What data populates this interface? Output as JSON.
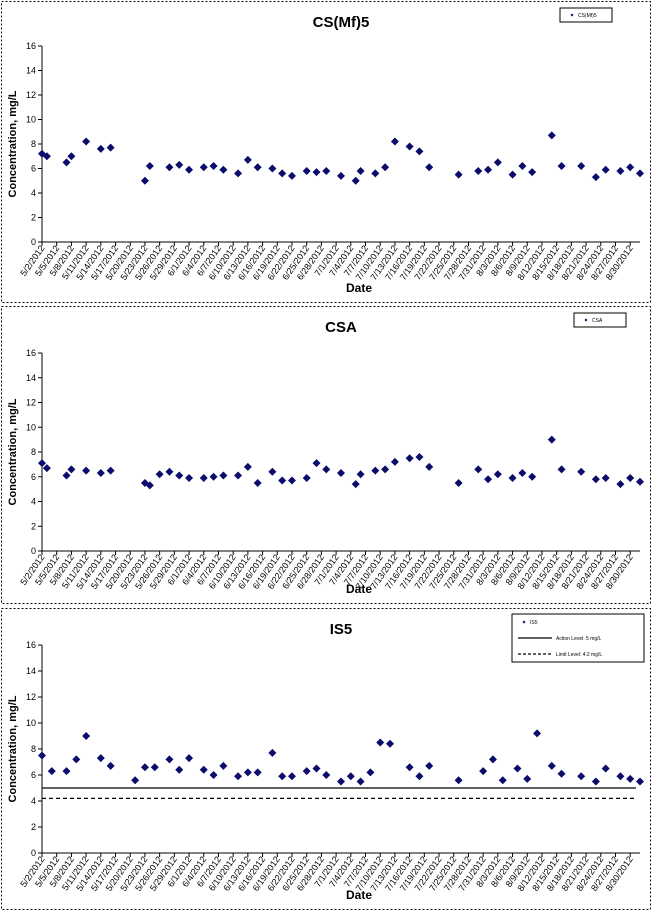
{
  "chart_data": [
    {
      "type": "scatter",
      "title": "CS(Mf)5",
      "xlabel": "Date",
      "ylabel": "Concentration, mg/L",
      "ylim": [
        0,
        16
      ],
      "yticks": [
        0,
        2,
        4,
        6,
        8,
        10,
        12,
        14,
        16
      ],
      "xlim": [
        "2012-05-02",
        "2012-09-01"
      ],
      "grid": false,
      "legend_position": "top-right",
      "x_tick_labels": [
        "5/2/2012",
        "5/5/2012",
        "5/8/2012",
        "5/11/2012",
        "5/14/2012",
        "5/17/2012",
        "5/20/2012",
        "5/23/2012",
        "5/26/2012",
        "5/29/2012",
        "6/1/2012",
        "6/4/2012",
        "6/7/2012",
        "6/10/2012",
        "6/13/2012",
        "6/16/2012",
        "6/19/2012",
        "6/22/2012",
        "6/25/2012",
        "6/28/2012",
        "7/1/2012",
        "7/4/2012",
        "7/7/2012",
        "7/10/2012",
        "7/13/2012",
        "7/16/2012",
        "7/19/2012",
        "7/22/2012",
        "7/25/2012",
        "7/28/2012",
        "7/31/2012",
        "8/3/2012",
        "8/6/2012",
        "8/9/2012",
        "8/12/2012",
        "8/15/2012",
        "8/18/2012",
        "8/21/2012",
        "8/24/2012",
        "8/27/2012",
        "8/30/2012"
      ],
      "series": [
        {
          "name": "CS(Mf)5",
          "marker": "diamond",
          "color": "#0b0b6b",
          "x": [
            "2012-05-02",
            "2012-05-03",
            "2012-05-07",
            "2012-05-08",
            "2012-05-11",
            "2012-05-14",
            "2012-05-16",
            "2012-05-23",
            "2012-05-24",
            "2012-05-28",
            "2012-05-30",
            "2012-06-01",
            "2012-06-04",
            "2012-06-06",
            "2012-06-08",
            "2012-06-11",
            "2012-06-13",
            "2012-06-15",
            "2012-06-18",
            "2012-06-20",
            "2012-06-22",
            "2012-06-25",
            "2012-06-27",
            "2012-06-29",
            "2012-07-02",
            "2012-07-05",
            "2012-07-06",
            "2012-07-09",
            "2012-07-11",
            "2012-07-13",
            "2012-07-16",
            "2012-07-18",
            "2012-07-20",
            "2012-07-26",
            "2012-07-30",
            "2012-08-01",
            "2012-08-03",
            "2012-08-06",
            "2012-08-08",
            "2012-08-10",
            "2012-08-14",
            "2012-08-16",
            "2012-08-20",
            "2012-08-23",
            "2012-08-25",
            "2012-08-28",
            "2012-08-30",
            "2012-09-01"
          ],
          "y": [
            7.2,
            7.0,
            6.5,
            7.0,
            8.2,
            7.6,
            7.7,
            5.0,
            6.2,
            6.1,
            6.3,
            5.9,
            6.1,
            6.2,
            5.9,
            5.6,
            6.7,
            6.1,
            6.0,
            5.6,
            5.4,
            5.8,
            5.7,
            5.8,
            5.4,
            5.0,
            5.8,
            5.6,
            6.1,
            8.2,
            7.8,
            7.4,
            6.1,
            5.5,
            5.8,
            5.9,
            6.5,
            5.5,
            6.2,
            5.7,
            8.7,
            6.2,
            6.2,
            5.3,
            5.9,
            5.8,
            6.1,
            5.6
          ]
        }
      ],
      "legend": [
        "CS(Mf)5"
      ]
    },
    {
      "type": "scatter",
      "title": "CSA",
      "xlabel": "Date",
      "ylabel": "Concentration, mg/L",
      "ylim": [
        0,
        16
      ],
      "yticks": [
        0,
        2,
        4,
        6,
        8,
        10,
        12,
        14,
        16
      ],
      "xlim": [
        "2012-05-02",
        "2012-09-01"
      ],
      "grid": false,
      "legend_position": "top-right",
      "x_tick_labels": [
        "5/2/2012",
        "5/5/2012",
        "5/8/2012",
        "5/11/2012",
        "5/14/2012",
        "5/17/2012",
        "5/20/2012",
        "5/23/2012",
        "5/26/2012",
        "5/29/2012",
        "6/1/2012",
        "6/4/2012",
        "6/7/2012",
        "6/10/2012",
        "6/13/2012",
        "6/16/2012",
        "6/19/2012",
        "6/22/2012",
        "6/25/2012",
        "6/28/2012",
        "7/1/2012",
        "7/4/2012",
        "7/7/2012",
        "7/10/2012",
        "7/13/2012",
        "7/16/2012",
        "7/19/2012",
        "7/22/2012",
        "7/25/2012",
        "7/28/2012",
        "7/31/2012",
        "8/3/2012",
        "8/6/2012",
        "8/9/2012",
        "8/12/2012",
        "8/15/2012",
        "8/18/2012",
        "8/21/2012",
        "8/24/2012",
        "8/27/2012",
        "8/30/2012"
      ],
      "series": [
        {
          "name": "CSA",
          "marker": "diamond",
          "color": "#0b0b6b",
          "x": [
            "2012-05-02",
            "2012-05-03",
            "2012-05-07",
            "2012-05-08",
            "2012-05-11",
            "2012-05-14",
            "2012-05-16",
            "2012-05-23",
            "2012-05-24",
            "2012-05-26",
            "2012-05-28",
            "2012-05-30",
            "2012-06-01",
            "2012-06-04",
            "2012-06-06",
            "2012-06-08",
            "2012-06-11",
            "2012-06-13",
            "2012-06-15",
            "2012-06-18",
            "2012-06-20",
            "2012-06-22",
            "2012-06-25",
            "2012-06-27",
            "2012-06-29",
            "2012-07-02",
            "2012-07-05",
            "2012-07-06",
            "2012-07-09",
            "2012-07-11",
            "2012-07-13",
            "2012-07-16",
            "2012-07-18",
            "2012-07-20",
            "2012-07-26",
            "2012-07-30",
            "2012-08-01",
            "2012-08-03",
            "2012-08-06",
            "2012-08-08",
            "2012-08-10",
            "2012-08-14",
            "2012-08-16",
            "2012-08-20",
            "2012-08-23",
            "2012-08-25",
            "2012-08-28",
            "2012-08-30",
            "2012-09-01"
          ],
          "y": [
            7.1,
            6.7,
            6.1,
            6.6,
            6.5,
            6.3,
            6.5,
            5.5,
            5.3,
            6.2,
            6.4,
            6.1,
            5.9,
            5.9,
            6.0,
            6.1,
            6.1,
            6.8,
            5.5,
            6.4,
            5.7,
            5.7,
            5.9,
            7.1,
            6.6,
            6.3,
            5.4,
            6.2,
            6.5,
            6.6,
            7.2,
            7.5,
            7.6,
            6.8,
            5.5,
            6.6,
            5.8,
            6.2,
            5.9,
            6.3,
            6.0,
            9.0,
            6.6,
            6.4,
            5.8,
            5.9,
            5.4,
            5.9,
            5.6
          ]
        }
      ],
      "legend": [
        "CSA"
      ]
    },
    {
      "type": "scatter",
      "title": "IS5",
      "xlabel": "Date",
      "ylabel": "Concentration, mg/L",
      "ylim": [
        0,
        16
      ],
      "yticks": [
        0,
        2,
        4,
        6,
        8,
        10,
        12,
        14,
        16
      ],
      "xlim": [
        "2012-05-02",
        "2012-09-01"
      ],
      "grid": false,
      "legend_position": "top-right",
      "x_tick_labels": [
        "5/2/2012",
        "5/5/2012",
        "5/8/2012",
        "5/11/2012",
        "5/14/2012",
        "5/17/2012",
        "5/20/2012",
        "5/23/2012",
        "5/26/2012",
        "5/29/2012",
        "6/1/2012",
        "6/4/2012",
        "6/7/2012",
        "6/10/2012",
        "6/13/2012",
        "6/16/2012",
        "6/19/2012",
        "6/22/2012",
        "6/25/2012",
        "6/28/2012",
        "7/1/2012",
        "7/4/2012",
        "7/7/2012",
        "7/10/2012",
        "7/13/2012",
        "7/16/2012",
        "7/19/2012",
        "7/22/2012",
        "7/25/2012",
        "7/28/2012",
        "7/31/2012",
        "8/3/2012",
        "8/6/2012",
        "8/9/2012",
        "8/12/2012",
        "8/15/2012",
        "8/18/2012",
        "8/21/2012",
        "8/24/2012",
        "8/27/2012",
        "8/30/2012"
      ],
      "series": [
        {
          "name": "IS5",
          "marker": "diamond",
          "color": "#0b0b6b",
          "x": [
            "2012-05-02",
            "2012-05-04",
            "2012-05-07",
            "2012-05-09",
            "2012-05-11",
            "2012-05-14",
            "2012-05-16",
            "2012-05-21",
            "2012-05-23",
            "2012-05-25",
            "2012-05-28",
            "2012-05-30",
            "2012-06-01",
            "2012-06-04",
            "2012-06-06",
            "2012-06-08",
            "2012-06-11",
            "2012-06-13",
            "2012-06-15",
            "2012-06-18",
            "2012-06-20",
            "2012-06-22",
            "2012-06-25",
            "2012-06-27",
            "2012-06-29",
            "2012-07-02",
            "2012-07-04",
            "2012-07-06",
            "2012-07-08",
            "2012-07-10",
            "2012-07-12",
            "2012-07-16",
            "2012-07-18",
            "2012-07-20",
            "2012-07-26",
            "2012-07-31",
            "2012-08-02",
            "2012-08-04",
            "2012-08-07",
            "2012-08-09",
            "2012-08-11",
            "2012-08-14",
            "2012-08-16",
            "2012-08-20",
            "2012-08-23",
            "2012-08-25",
            "2012-08-28",
            "2012-08-30",
            "2012-09-01"
          ],
          "y": [
            7.5,
            6.3,
            6.3,
            7.2,
            9.0,
            7.3,
            6.7,
            5.6,
            6.6,
            6.6,
            7.2,
            6.4,
            7.3,
            6.4,
            6.0,
            6.7,
            5.9,
            6.2,
            6.2,
            7.7,
            5.9,
            5.9,
            6.3,
            6.5,
            6.0,
            5.5,
            5.9,
            5.5,
            6.2,
            8.5,
            8.4,
            6.6,
            5.9,
            6.7,
            5.6,
            6.3,
            7.2,
            5.6,
            6.5,
            5.7,
            9.2,
            6.7,
            6.1,
            5.9,
            5.5,
            6.5,
            5.9,
            5.7,
            5.5
          ]
        },
        {
          "name": "Action Level: 5 mg/L",
          "type": "line",
          "style": "solid",
          "value": 5
        },
        {
          "name": "Limit Level: 4.2 mg/L",
          "type": "line",
          "style": "dashed",
          "value": 4.2
        }
      ],
      "legend": [
        "IS5",
        "Action Level: 5 mg/L",
        "Limit Level: 4.2 mg/L"
      ]
    }
  ]
}
